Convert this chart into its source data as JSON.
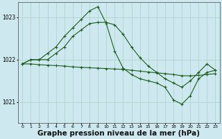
{
  "background_color": "#cde8ee",
  "grid_color": "#b0d4cc",
  "line_color": "#1a5c1a",
  "xlabel": "Graphe pression niveau de la mer (hPa)",
  "xlabel_fontsize": 7.5,
  "ylim": [
    1020.5,
    1023.35
  ],
  "xlim": [
    -0.5,
    23.5
  ],
  "yticks": [
    1021,
    1022,
    1023
  ],
  "xticks": [
    0,
    1,
    2,
    3,
    4,
    5,
    6,
    7,
    8,
    9,
    10,
    11,
    12,
    13,
    14,
    15,
    16,
    17,
    18,
    19,
    20,
    21,
    22,
    23
  ],
  "series1_x": [
    0,
    1,
    2,
    3,
    4,
    5,
    6,
    7,
    8,
    9,
    10,
    11,
    12,
    13,
    14,
    15,
    16,
    17,
    18,
    19,
    20,
    21,
    22,
    23
  ],
  "series1_y": [
    1021.9,
    1022.0,
    1022.0,
    1022.15,
    1022.3,
    1022.55,
    1022.75,
    1022.95,
    1023.15,
    1023.25,
    1022.85,
    1022.2,
    1021.8,
    1021.65,
    1021.55,
    1021.5,
    1021.45,
    1021.35,
    1021.05,
    1020.95,
    1021.15,
    1021.55,
    1021.7,
    1021.75
  ],
  "series2_x": [
    0,
    1,
    2,
    3,
    4,
    5,
    6,
    7,
    8,
    9,
    10,
    11,
    12,
    13,
    14,
    15,
    16,
    17,
    18,
    19,
    20,
    21,
    22,
    23
  ],
  "series2_y": [
    1021.9,
    1021.9,
    1021.88,
    1021.87,
    1021.86,
    1021.85,
    1021.83,
    1021.82,
    1021.81,
    1021.8,
    1021.79,
    1021.78,
    1021.77,
    1021.75,
    1021.73,
    1021.71,
    1021.69,
    1021.67,
    1021.65,
    1021.62,
    1021.62,
    1021.63,
    1021.65,
    1021.67
  ],
  "series3_x": [
    0,
    1,
    2,
    3,
    4,
    5,
    6,
    7,
    8,
    9,
    10,
    11,
    12,
    13,
    14,
    15,
    16,
    17,
    18,
    19,
    20,
    21,
    22,
    23
  ],
  "series3_y": [
    1021.9,
    1022.0,
    1022.0,
    1022.0,
    1022.15,
    1022.3,
    1022.55,
    1022.7,
    1022.85,
    1022.88,
    1022.88,
    1022.82,
    1022.6,
    1022.3,
    1022.05,
    1021.85,
    1021.7,
    1021.55,
    1021.45,
    1021.35,
    1021.5,
    1021.7,
    1021.9,
    1021.75
  ]
}
